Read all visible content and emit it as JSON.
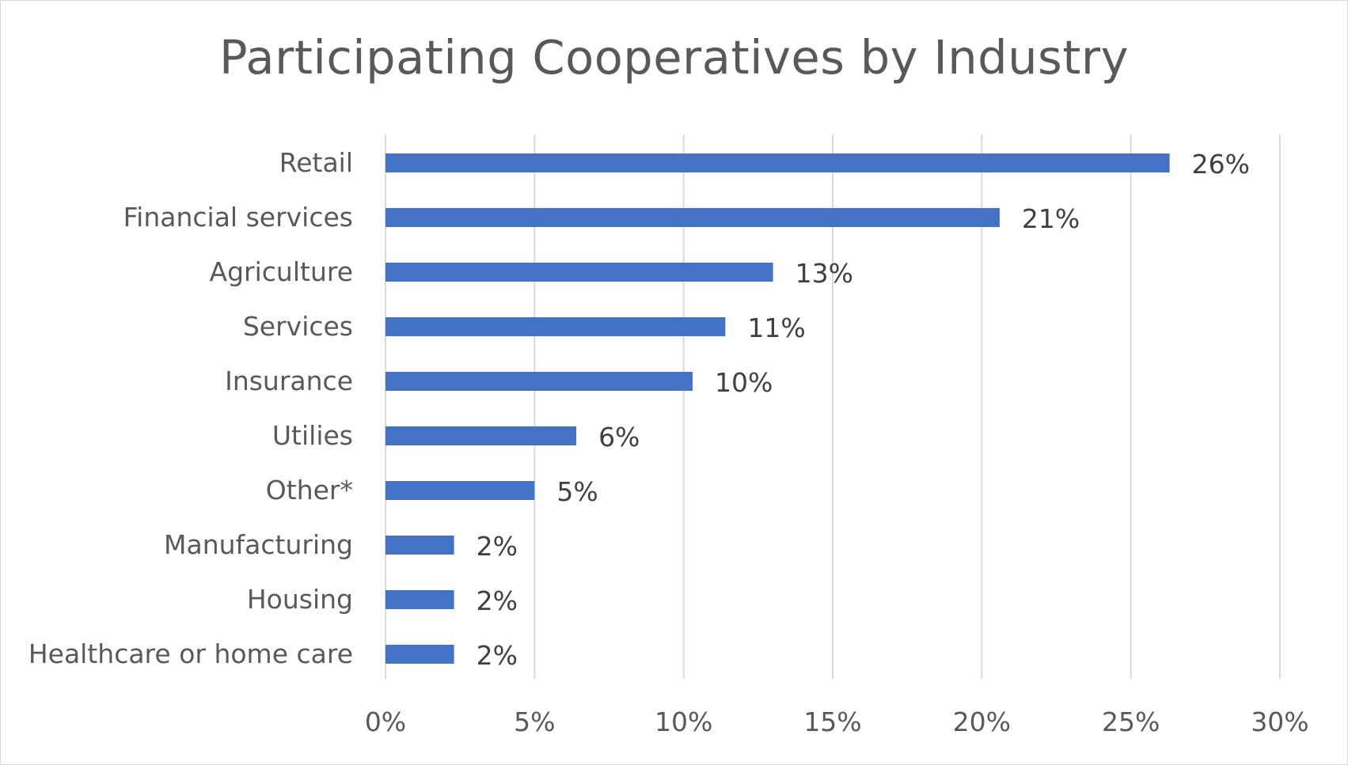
{
  "chart_data": {
    "type": "bar",
    "orientation": "horizontal",
    "title": "Participating Cooperatives by Industry",
    "xlabel": "",
    "ylabel": "",
    "categories": [
      "Retail",
      "Financial services",
      "Agriculture",
      "Services",
      "Insurance",
      "Utilies",
      "Other*",
      "Manufacturing",
      "Housing",
      "Healthcare or home care"
    ],
    "values": [
      26.3,
      20.6,
      13.0,
      11.4,
      10.3,
      6.4,
      5.0,
      2.3,
      2.3,
      2.3
    ],
    "data_labels": [
      "26%",
      "21%",
      "13%",
      "11%",
      "10%",
      "6%",
      "5%",
      "2%",
      "2%",
      "2%"
    ],
    "xlim": [
      0,
      30
    ],
    "x_ticks": [
      0,
      5,
      10,
      15,
      20,
      25,
      30
    ],
    "x_tick_labels": [
      "0%",
      "5%",
      "10%",
      "15%",
      "20%",
      "25%",
      "30%"
    ],
    "grid": "vertical",
    "legend": "none",
    "colors": {
      "bar": "#4472c4",
      "grid": "#d9d9d9",
      "text": "#595959",
      "data_label": "#404040"
    }
  }
}
